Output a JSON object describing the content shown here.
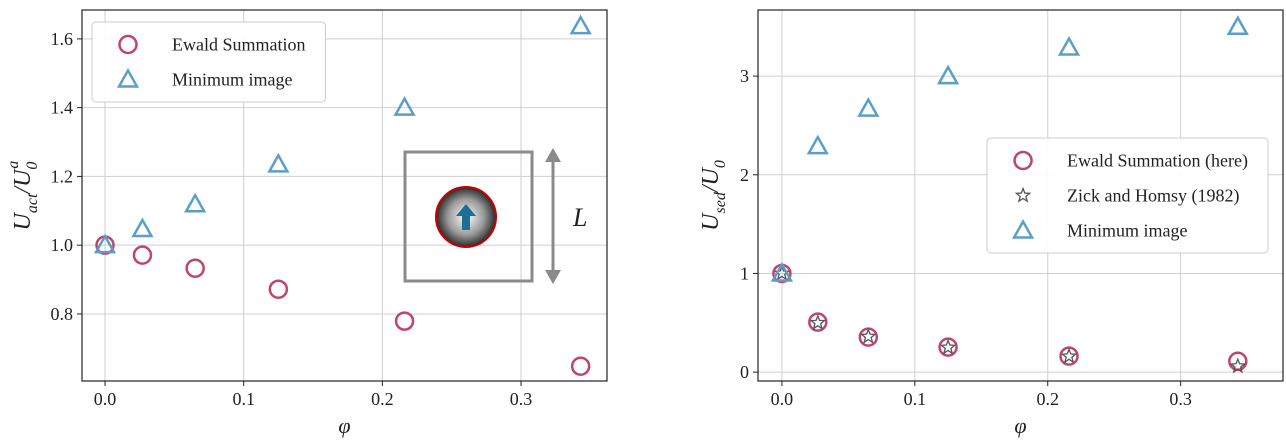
{
  "chart_data": [
    {
      "type": "scatter",
      "xlabel": "φ",
      "ylabel": [
        {
          "text": "U"
        },
        {
          "sub": "act"
        },
        {
          "text": "/U"
        },
        {
          "sub": "0"
        },
        {
          "sup": "a"
        }
      ],
      "xlim": [
        -0.0166,
        0.362
      ],
      "ylim": [
        0.605,
        1.684
      ],
      "xticks": [
        {
          "value": 0,
          "label": "0.0"
        },
        0.1,
        0.2,
        0.3
      ],
      "yticks": [
        0.8,
        {
          "value": 1,
          "label": "1.0"
        },
        1.2,
        1.4,
        1.6
      ],
      "grid": true,
      "legend": "upper left",
      "annotation": "L",
      "series": [
        {
          "name": "Ewald Summation",
          "color": "#c0456a",
          "marker": "circle",
          "x": [
            0,
            0.027,
            0.065,
            0.125,
            0.216,
            0.343
          ],
          "values": [
            1.0,
            0.971,
            0.933,
            0.872,
            0.779,
            0.648
          ]
        },
        {
          "name": "Minimum image",
          "color": "#5b9fc9",
          "marker": "triangle",
          "x": [
            0,
            0.027,
            0.065,
            0.125,
            0.216,
            0.343
          ],
          "values": [
            1.0,
            1.047,
            1.119,
            1.235,
            1.4,
            1.637
          ]
        }
      ]
    },
    {
      "type": "scatter",
      "xlabel": "φ",
      "ylabel": [
        {
          "text": "U"
        },
        {
          "sub": "sed"
        },
        {
          "text": "/U"
        },
        {
          "sub": "0"
        }
      ],
      "xlim": [
        -0.018,
        0.377
      ],
      "ylim": [
        -0.09,
        3.67
      ],
      "xticks": [
        {
          "value": 0,
          "label": "0.0"
        },
        0.1,
        0.2,
        0.3
      ],
      "yticks": [
        0,
        1,
        2,
        3
      ],
      "grid": true,
      "legend": "center right",
      "series": [
        {
          "name": "Ewald Summation (here)",
          "color": "#c0456a",
          "marker": "circle",
          "x": [
            0,
            0.027,
            0.065,
            0.125,
            0.216,
            0.343
          ],
          "values": [
            1.0,
            0.507,
            0.355,
            0.253,
            0.162,
            0.11
          ]
        },
        {
          "name": "Zick and Homsy (1982)",
          "color": "#555555",
          "marker": "star",
          "x": [
            0,
            0.027,
            0.065,
            0.125,
            0.216,
            0.343
          ],
          "values": [
            1.0,
            0.5,
            0.36,
            0.25,
            0.16,
            0.06
          ]
        },
        {
          "name": "Minimum image",
          "color": "#5b9fc9",
          "marker": "triangle",
          "x": [
            0,
            0.027,
            0.065,
            0.125,
            0.216,
            0.343
          ],
          "values": [
            1.0,
            2.29,
            2.67,
            3.0,
            3.29,
            3.5
          ]
        }
      ]
    }
  ]
}
